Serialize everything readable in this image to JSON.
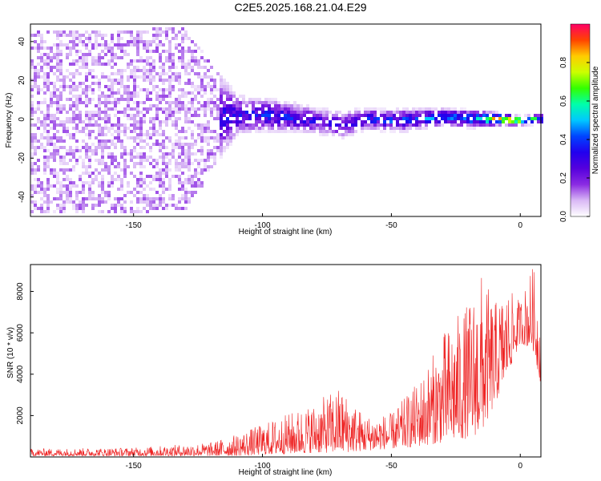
{
  "title": "C2E5.2025.168.21.04.E29",
  "colors": {
    "snr_line": "#ee2222",
    "colormap": [
      "#ffffff",
      "#d9b8f5",
      "#8a2be2",
      "#5500dd",
      "#2200ee",
      "#0044ff",
      "#00c8ff",
      "#00ffaa",
      "#33ff00",
      "#ccff00",
      "#ffcc00",
      "#ff4400",
      "#ff0066"
    ]
  },
  "chart_data": [
    {
      "type": "heatmap",
      "xlabel": "Height of straight line (km)",
      "ylabel": "Frequency (Hz)",
      "xlim": [
        -190,
        8
      ],
      "ylim": [
        -50,
        49
      ],
      "xticks": [
        -150,
        -100,
        -50,
        0
      ],
      "yticks": [
        -40,
        -20,
        0,
        20,
        40
      ],
      "colorbar": {
        "label": "Normalized spectral amplitude",
        "range": [
          0,
          1
        ],
        "ticks": [
          0.0,
          0.2,
          0.4,
          0.6,
          0.8
        ]
      },
      "description_points": {
        "x": [
          -185,
          -170,
          -150,
          -130,
          -120,
          -110,
          -100,
          -90,
          -80,
          -70,
          -60,
          -50,
          -40,
          -30,
          -20,
          -10,
          0,
          5
        ],
        "center_frequency": [
          0,
          0,
          0,
          1,
          2,
          3,
          3,
          2,
          0,
          -2,
          1,
          0,
          1,
          2,
          1,
          1,
          0,
          1
        ],
        "band_halfwidth": [
          45,
          45,
          45,
          45,
          25,
          8,
          7,
          6,
          5,
          5,
          4,
          4,
          4,
          3,
          3,
          2,
          1,
          1
        ],
        "peak_amplitude": [
          0.15,
          0.2,
          0.25,
          0.3,
          0.3,
          0.35,
          0.35,
          0.35,
          0.3,
          0.3,
          0.35,
          0.4,
          0.4,
          0.45,
          0.5,
          0.9,
          0.95,
          0.6
        ]
      }
    },
    {
      "type": "line",
      "xlabel": "Height of straight line (km)",
      "ylabel": "SNR (10 * v/v)",
      "xlim": [
        -190,
        8
      ],
      "ylim": [
        0,
        9300
      ],
      "xticks": [
        -150,
        -100,
        -50,
        0
      ],
      "yticks": [
        2000,
        4000,
        6000,
        8000
      ],
      "envelope": {
        "x": [
          -190,
          -150,
          -120,
          -110,
          -100,
          -90,
          -80,
          -70,
          -60,
          -50,
          -40,
          -35,
          -30,
          -25,
          -20,
          -15,
          -10,
          -5,
          0,
          5,
          8
        ],
        "upper": [
          400,
          450,
          700,
          1100,
          1600,
          2100,
          2600,
          3400,
          2000,
          2100,
          3600,
          4700,
          6000,
          6800,
          7500,
          8900,
          7500,
          8100,
          7600,
          9300,
          6500
        ],
        "lower": [
          50,
          50,
          50,
          60,
          100,
          150,
          200,
          200,
          300,
          400,
          500,
          600,
          700,
          800,
          900,
          1200,
          2500,
          4000,
          5500,
          5200,
          3500
        ]
      }
    }
  ]
}
